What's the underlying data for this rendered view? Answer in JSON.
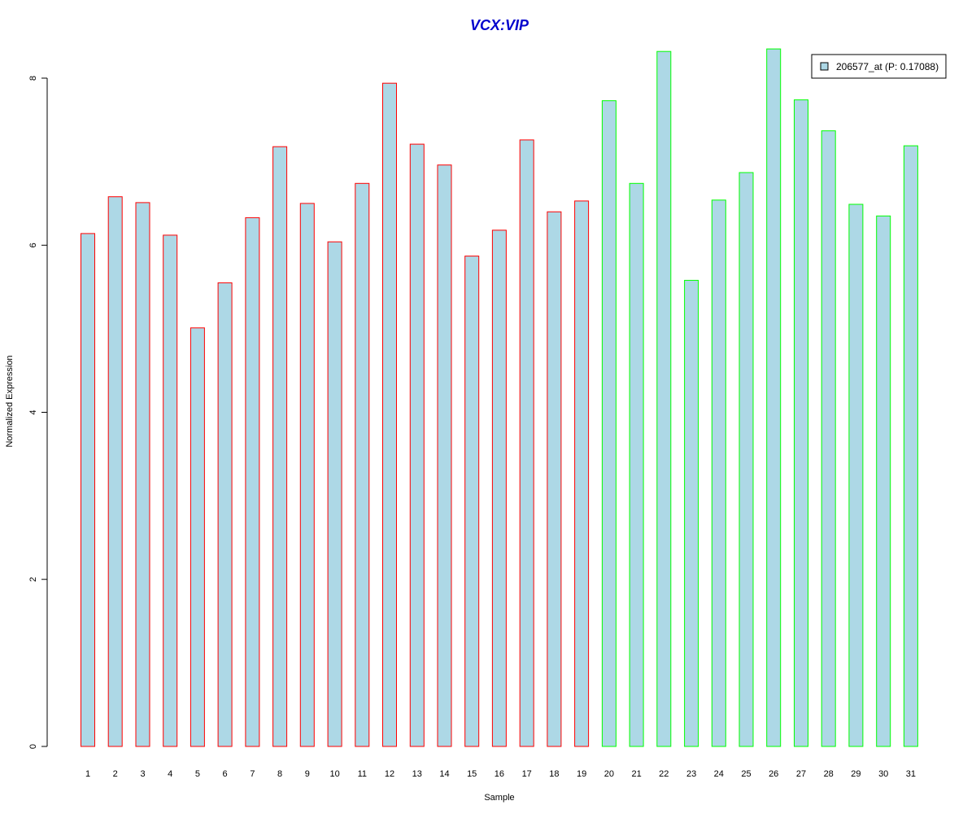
{
  "chart_data": {
    "type": "bar",
    "title": "VCX:VIP",
    "xlabel": "Sample",
    "ylabel": "Normalized Expression",
    "ylim": [
      0,
      8.4
    ],
    "yticks": [
      0,
      2,
      4,
      6,
      8
    ],
    "categories": [
      "1",
      "2",
      "3",
      "4",
      "5",
      "6",
      "7",
      "8",
      "9",
      "10",
      "11",
      "12",
      "13",
      "14",
      "15",
      "16",
      "17",
      "18",
      "19",
      "20",
      "21",
      "22",
      "23",
      "24",
      "25",
      "26",
      "27",
      "28",
      "29",
      "30",
      "31"
    ],
    "series": [
      {
        "name": "206577_at (P: 0.17088)",
        "fill": "#add8e6",
        "values": [
          6.14,
          6.58,
          6.51,
          6.12,
          5.01,
          5.55,
          6.33,
          7.18,
          6.5,
          6.04,
          6.74,
          7.94,
          7.21,
          6.96,
          5.87,
          6.18,
          7.26,
          6.4,
          6.53,
          7.73,
          6.74,
          8.32,
          5.58,
          6.54,
          6.87,
          8.35,
          7.74,
          7.37,
          6.49,
          6.35,
          7.19
        ]
      }
    ],
    "group_outline_colors": [
      "#ff0000",
      "#ff0000",
      "#ff0000",
      "#ff0000",
      "#ff0000",
      "#ff0000",
      "#ff0000",
      "#ff0000",
      "#ff0000",
      "#ff0000",
      "#ff0000",
      "#ff0000",
      "#ff0000",
      "#ff0000",
      "#ff0000",
      "#ff0000",
      "#ff0000",
      "#ff0000",
      "#ff0000",
      "#00ff00",
      "#00ff00",
      "#00ff00",
      "#00ff00",
      "#00ff00",
      "#00ff00",
      "#00ff00",
      "#00ff00",
      "#00ff00",
      "#00ff00",
      "#00ff00",
      "#00ff00"
    ],
    "title_color": "#0000cd",
    "legend_position": "top-right",
    "grid": false
  }
}
